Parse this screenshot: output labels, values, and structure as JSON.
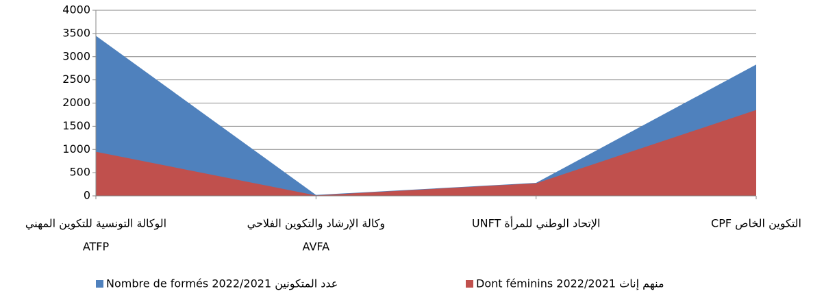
{
  "chart_data": {
    "type": "area",
    "categories": [
      [
        "الوكالة التونسية للتكوين المهني",
        "ATFP"
      ],
      [
        "وكالة الإرشاد والتكوين الفلاحي",
        "AVFA"
      ],
      [
        "الإتحاد الوطني للمرأة UNFT"
      ],
      [
        "التكوين الخاص CPF"
      ]
    ],
    "series": [
      {
        "name": "Nombre de formés 2022/2021 عدد المتكونين",
        "color": "#4f81bd",
        "values": [
          3450,
          20,
          280,
          2830
        ]
      },
      {
        "name": "منهم إناث Dont féminins 2022/2021",
        "color": "#c0504d",
        "values": [
          950,
          10,
          270,
          1850
        ]
      }
    ],
    "ylim": [
      0,
      4000
    ],
    "yticks": [
      0,
      500,
      1000,
      1500,
      2000,
      2500,
      3000,
      3500,
      4000
    ],
    "grid": true,
    "legend": "bottom"
  }
}
